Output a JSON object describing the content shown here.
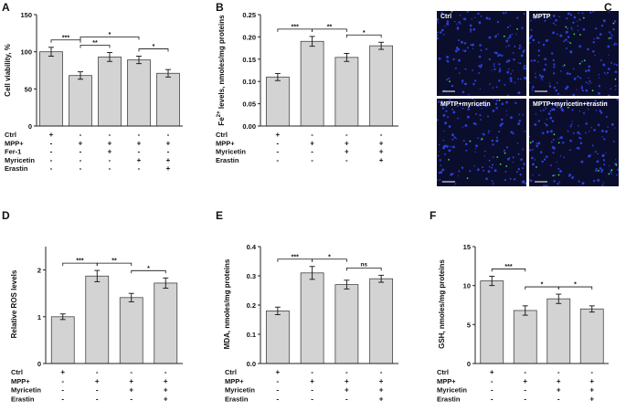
{
  "chart_data": [
    {
      "panel_letter": "A",
      "type": "bar",
      "ylabel": "Cell viability, %",
      "ylim": [
        0,
        150
      ],
      "yticks": [
        "0",
        "50",
        "100",
        "150"
      ],
      "ytick_values": [
        0,
        50,
        100,
        150
      ],
      "values": [
        100,
        68,
        93,
        89,
        71
      ],
      "errors": [
        6,
        5,
        6,
        5,
        5
      ],
      "significance": [
        {
          "from": 0,
          "to": 1,
          "label": "***"
        },
        {
          "from": 1,
          "to": 2,
          "label": "**"
        },
        {
          "from": 1,
          "to": 3,
          "label": "*"
        },
        {
          "from": 3,
          "to": 4,
          "label": "*"
        }
      ],
      "treatments": [
        {
          "name": "Ctrl",
          "marks": [
            "+",
            "-",
            "-",
            "-",
            "-"
          ]
        },
        {
          "name": "MPP+",
          "marks": [
            "-",
            "+",
            "+",
            "+",
            "+"
          ]
        },
        {
          "name": "Fer-1",
          "marks": [
            "-",
            "-",
            "+",
            "-",
            "-"
          ]
        },
        {
          "name": "Myricetin",
          "marks": [
            "-",
            "-",
            "-",
            "+",
            "+"
          ]
        },
        {
          "name": "Erastin",
          "marks": [
            "-",
            "-",
            "-",
            "-",
            "+"
          ]
        }
      ]
    },
    {
      "panel_letter": "B",
      "type": "bar",
      "ylabel_prefix": "Fe",
      "ylabel_sup": "2+",
      "ylabel_suffix": " levels, nmoles/mg proteins",
      "ylim": [
        0.0,
        0.25
      ],
      "yticks": [
        "0.00",
        "0.05",
        "0.10",
        "0.15",
        "0.20",
        "0.25"
      ],
      "ytick_values": [
        0,
        0.05,
        0.1,
        0.15,
        0.2,
        0.25
      ],
      "values": [
        0.11,
        0.19,
        0.154,
        0.18
      ],
      "errors": [
        0.008,
        0.011,
        0.009,
        0.008
      ],
      "significance": [
        {
          "from": 0,
          "to": 1,
          "label": "***"
        },
        {
          "from": 1,
          "to": 2,
          "label": "**"
        },
        {
          "from": 2,
          "to": 3,
          "label": "*"
        }
      ],
      "treatments": [
        {
          "name": "Ctrl",
          "marks": [
            "+",
            "-",
            "-",
            "-"
          ]
        },
        {
          "name": "MPP+",
          "marks": [
            "-",
            "+",
            "+",
            "+"
          ]
        },
        {
          "name": "Myricetin",
          "marks": [
            "-",
            "-",
            "+",
            "+"
          ]
        },
        {
          "name": "Erastin",
          "marks": [
            "-",
            "-",
            "-",
            "+"
          ]
        }
      ]
    },
    {
      "panel_letter": "D",
      "type": "bar",
      "ylabel": "Relative ROS levels",
      "ylim": [
        0,
        2.5
      ],
      "yticks": [
        "0",
        "1",
        "2"
      ],
      "ytick_values": [
        0,
        1,
        2
      ],
      "values": [
        1.0,
        1.87,
        1.41,
        1.72
      ],
      "errors": [
        0.06,
        0.12,
        0.09,
        0.11
      ],
      "significance": [
        {
          "from": 0,
          "to": 1,
          "label": "***"
        },
        {
          "from": 1,
          "to": 2,
          "label": "**"
        },
        {
          "from": 2,
          "to": 3,
          "label": "*"
        }
      ],
      "treatments": [
        {
          "name": "Ctrl",
          "marks": [
            "+",
            "-",
            "-",
            "-"
          ]
        },
        {
          "name": "MPP+",
          "marks": [
            "-",
            "+",
            "+",
            "+"
          ]
        },
        {
          "name": "Myricetin",
          "marks": [
            "-",
            "-",
            "+",
            "+"
          ]
        },
        {
          "name": "Erastin",
          "marks": [
            "-",
            "-",
            "-",
            "+"
          ]
        }
      ]
    },
    {
      "panel_letter": "E",
      "type": "bar",
      "ylabel": "MDA, nmoles/mg proteins",
      "ylim": [
        0.0,
        0.4
      ],
      "yticks": [
        "0.0",
        "0.1",
        "0.2",
        "0.3",
        "0.4"
      ],
      "ytick_values": [
        0,
        0.1,
        0.2,
        0.3,
        0.4
      ],
      "values": [
        0.18,
        0.31,
        0.27,
        0.29
      ],
      "errors": [
        0.013,
        0.022,
        0.015,
        0.012
      ],
      "significance": [
        {
          "from": 0,
          "to": 1,
          "label": "***"
        },
        {
          "from": 1,
          "to": 2,
          "label": "*"
        },
        {
          "from": 2,
          "to": 3,
          "label": "ns"
        }
      ],
      "treatments": [
        {
          "name": "Ctrl",
          "marks": [
            "+",
            "-",
            "-",
            "-"
          ]
        },
        {
          "name": "MPP+",
          "marks": [
            "-",
            "+",
            "+",
            "+"
          ]
        },
        {
          "name": "Myricetin",
          "marks": [
            "-",
            "-",
            "+",
            "+"
          ]
        },
        {
          "name": "Erastin",
          "marks": [
            "-",
            "-",
            "-",
            "+"
          ]
        }
      ]
    },
    {
      "panel_letter": "F",
      "type": "bar",
      "ylabel": "GSH, nmoles/mg proteins",
      "ylim": [
        0,
        15
      ],
      "yticks": [
        "0",
        "5",
        "10",
        "15"
      ],
      "ytick_values": [
        0,
        5,
        10,
        15
      ],
      "values": [
        10.6,
        6.8,
        8.3,
        7.0
      ],
      "errors": [
        0.6,
        0.6,
        0.6,
        0.4
      ],
      "significance": [
        {
          "from": 0,
          "to": 1,
          "label": "***"
        },
        {
          "from": 1,
          "to": 2,
          "label": "*"
        },
        {
          "from": 2,
          "to": 3,
          "label": "*"
        }
      ],
      "treatments": [
        {
          "name": "Ctrl",
          "marks": [
            "+",
            "-",
            "-",
            "-"
          ]
        },
        {
          "name": "MPP+",
          "marks": [
            "-",
            "+",
            "+",
            "+"
          ]
        },
        {
          "name": "Myricetin",
          "marks": [
            "-",
            "-",
            "+",
            "+"
          ]
        },
        {
          "name": "Erastin",
          "marks": [
            "-",
            "-",
            "-",
            "+"
          ]
        }
      ]
    }
  ],
  "microscopy": {
    "panel_letter": "C",
    "images": [
      {
        "label": "Ctrl"
      },
      {
        "label": "MPTP"
      },
      {
        "label": "MPTP+myricetin"
      },
      {
        "label": "MPTP+myricetin+erastin"
      }
    ]
  },
  "colors": {
    "bar_fill": "#d3d3d3",
    "bar_stroke": "#444444",
    "axis": "#222222",
    "micro_background": "#0b0d2c",
    "micro_nuclei": "#2a3fd6",
    "micro_signal": "#3ddc5a"
  }
}
